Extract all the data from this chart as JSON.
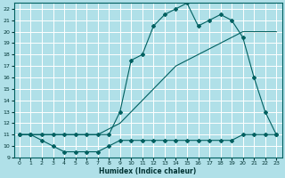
{
  "xlabel": "Humidex (Indice chaleur)",
  "bg_color": "#b0e0e8",
  "grid_color": "#ffffff",
  "line_color": "#006060",
  "xlim": [
    -0.5,
    23.5
  ],
  "ylim": [
    9,
    22.5
  ],
  "xticks": [
    0,
    1,
    2,
    3,
    4,
    5,
    6,
    7,
    8,
    9,
    10,
    11,
    12,
    13,
    14,
    15,
    16,
    17,
    18,
    19,
    20,
    21,
    22,
    23
  ],
  "yticks": [
    9,
    10,
    11,
    12,
    13,
    14,
    15,
    16,
    17,
    18,
    19,
    20,
    21,
    22
  ],
  "line1_x": [
    0,
    1,
    2,
    3,
    4,
    5,
    6,
    7,
    8,
    9,
    10,
    11,
    12,
    13,
    14,
    15,
    16,
    17,
    18,
    19,
    20,
    21,
    22,
    23
  ],
  "line1_y": [
    11,
    11,
    10.5,
    10,
    9.5,
    9.5,
    9.5,
    9.5,
    10,
    10.5,
    10.5,
    10.5,
    10.5,
    10.5,
    10.5,
    10.5,
    10.5,
    10.5,
    10.5,
    10.5,
    11,
    11,
    11,
    11
  ],
  "line2_x": [
    0,
    1,
    2,
    3,
    4,
    5,
    6,
    7,
    8,
    9,
    10,
    11,
    12,
    13,
    14,
    15,
    16,
    17,
    18,
    19,
    20,
    21,
    22,
    23
  ],
  "line2_y": [
    11,
    11,
    11,
    11,
    11,
    11,
    11,
    11,
    11.5,
    12,
    13,
    14,
    15,
    16,
    17,
    17.5,
    18,
    18.5,
    19,
    19.5,
    20,
    20,
    20,
    20
  ],
  "line3_x": [
    0,
    1,
    2,
    3,
    4,
    5,
    6,
    7,
    8,
    9,
    10,
    11,
    12,
    13,
    14,
    15,
    16,
    17,
    18,
    19,
    20,
    21,
    22,
    23
  ],
  "line3_y": [
    11,
    11,
    11,
    11,
    11,
    11,
    11,
    11,
    11,
    13,
    17.5,
    18,
    20.5,
    21.5,
    22,
    22.5,
    20.5,
    21,
    21.5,
    21,
    19.5,
    16,
    13,
    11
  ]
}
